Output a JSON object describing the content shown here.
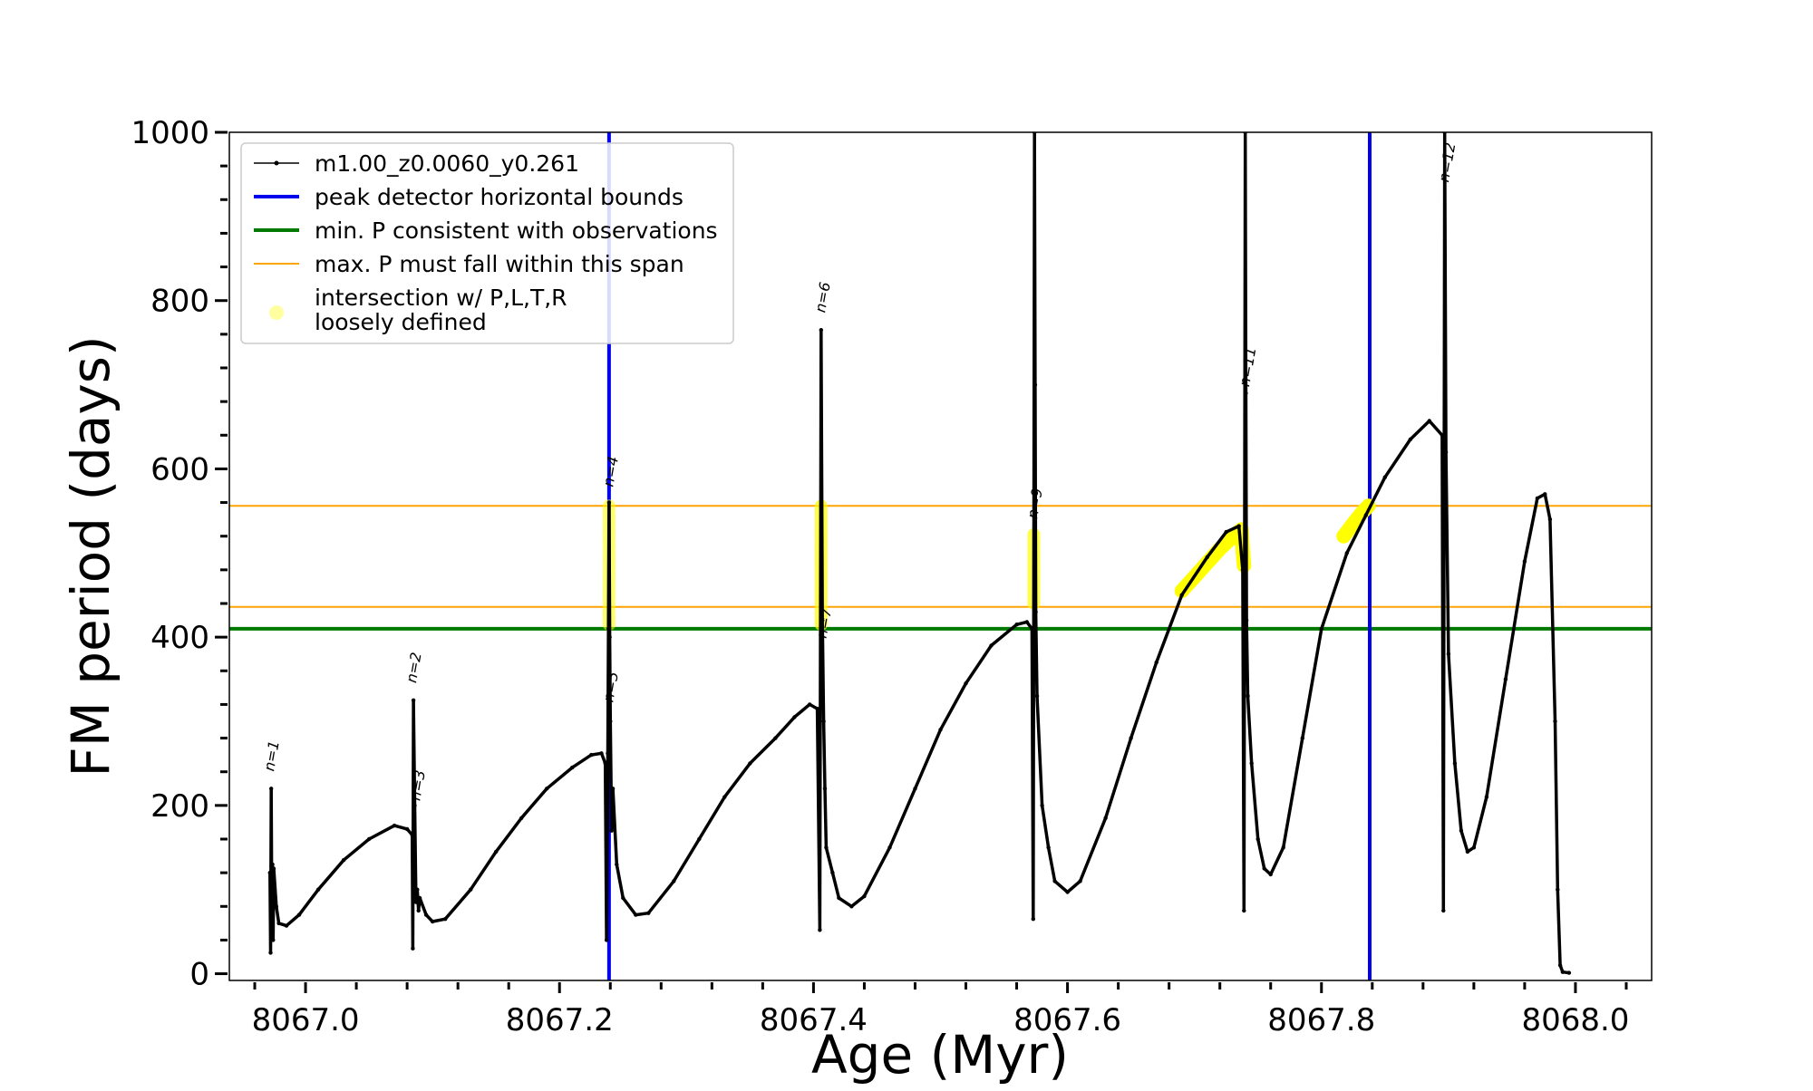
{
  "chart_data": {
    "type": "line",
    "title": "",
    "xlabel": "Age (Myr)",
    "ylabel": "FM period (days)",
    "xlim": [
      8066.94,
      8068.06
    ],
    "ylim": [
      -8,
      1000
    ],
    "x_ticks": [
      8067.0,
      8067.2,
      8067.4,
      8067.6,
      8067.8,
      8068.0
    ],
    "x_tick_labels": [
      "8067.0",
      "8067.2",
      "8067.4",
      "8067.6",
      "8067.8",
      "8068.0"
    ],
    "y_ticks": [
      0,
      200,
      400,
      600,
      800,
      1000
    ],
    "y_tick_labels": [
      "0",
      "200",
      "400",
      "600",
      "800",
      "1000"
    ],
    "x_minor_step": 0.04,
    "y_minor_step": 40,
    "legend": {
      "position": "top-left",
      "entries": [
        {
          "label": "m1.00_z0.0060_y0.261",
          "style": "line-marker",
          "color": "#000000"
        },
        {
          "label": "peak detector horizontal bounds",
          "style": "line",
          "color": "#0000ee"
        },
        {
          "label": "min. P consistent with observations",
          "style": "line",
          "color": "#007a00"
        },
        {
          "label": "max. P must fall within this span",
          "style": "line",
          "color": "#ffa500"
        },
        {
          "label": "intersection w/ P,L,T,R",
          "label2": "loosely defined",
          "style": "marker",
          "color": "#ffff88"
        }
      ]
    },
    "series": [
      {
        "name": "m1.00_z0.0060_y0.261",
        "color": "#000000",
        "points": [
          [
            8066.972,
            120
          ],
          [
            8066.9725,
            25
          ],
          [
            8066.973,
            220
          ],
          [
            8066.9735,
            60
          ],
          [
            8066.974,
            130
          ],
          [
            8066.9745,
            40
          ],
          [
            8066.975,
            125
          ],
          [
            8066.977,
            80
          ],
          [
            8066.979,
            60
          ],
          [
            8066.985,
            57
          ],
          [
            8066.995,
            70
          ],
          [
            8067.01,
            100
          ],
          [
            8067.03,
            135
          ],
          [
            8067.05,
            160
          ],
          [
            8067.07,
            176
          ],
          [
            8067.08,
            172
          ],
          [
            8067.084,
            165
          ],
          [
            8067.0845,
            30
          ],
          [
            8067.085,
            325
          ],
          [
            8067.086,
            200
          ],
          [
            8067.087,
            85
          ],
          [
            8067.088,
            100
          ],
          [
            8067.089,
            75
          ],
          [
            8067.09,
            90
          ],
          [
            8067.095,
            70
          ],
          [
            8067.1,
            62
          ],
          [
            8067.11,
            65
          ],
          [
            8067.13,
            100
          ],
          [
            8067.15,
            145
          ],
          [
            8067.17,
            185
          ],
          [
            8067.19,
            220
          ],
          [
            8067.21,
            245
          ],
          [
            8067.225,
            260
          ],
          [
            8067.233,
            262
          ],
          [
            8067.236,
            250
          ],
          [
            8067.237,
            40
          ],
          [
            8067.238,
            262
          ],
          [
            8067.2385,
            410
          ],
          [
            8067.239,
            560
          ],
          [
            8067.2395,
            400
          ],
          [
            8067.24,
            300
          ],
          [
            8067.241,
            170
          ],
          [
            8067.242,
            220
          ],
          [
            8067.245,
            130
          ],
          [
            8067.25,
            90
          ],
          [
            8067.26,
            70
          ],
          [
            8067.27,
            72
          ],
          [
            8067.29,
            110
          ],
          [
            8067.31,
            160
          ],
          [
            8067.33,
            210
          ],
          [
            8067.35,
            250
          ],
          [
            8067.37,
            280
          ],
          [
            8067.385,
            305
          ],
          [
            8067.397,
            320
          ],
          [
            8067.403,
            315
          ],
          [
            8067.405,
            52
          ],
          [
            8067.406,
            765
          ],
          [
            8067.407,
            420
          ],
          [
            8067.408,
            300
          ],
          [
            8067.409,
            220
          ],
          [
            8067.41,
            150
          ],
          [
            8067.415,
            120
          ],
          [
            8067.42,
            90
          ],
          [
            8067.43,
            80
          ],
          [
            8067.44,
            92
          ],
          [
            8067.46,
            150
          ],
          [
            8067.48,
            220
          ],
          [
            8067.5,
            290
          ],
          [
            8067.52,
            345
          ],
          [
            8067.54,
            390
          ],
          [
            8067.56,
            415
          ],
          [
            8067.568,
            418
          ],
          [
            8067.572,
            410
          ],
          [
            8067.573,
            65
          ],
          [
            8067.574,
            1000
          ],
          [
            8067.5745,
            700
          ],
          [
            8067.575,
            430
          ],
          [
            8067.576,
            330
          ],
          [
            8067.58,
            200
          ],
          [
            8067.585,
            150
          ],
          [
            8067.59,
            110
          ],
          [
            8067.6,
            97
          ],
          [
            8067.61,
            110
          ],
          [
            8067.63,
            185
          ],
          [
            8067.65,
            280
          ],
          [
            8067.67,
            370
          ],
          [
            8067.69,
            450
          ],
          [
            8067.71,
            495
          ],
          [
            8067.725,
            525
          ],
          [
            8067.735,
            532
          ],
          [
            8067.738,
            480
          ],
          [
            8067.739,
            75
          ],
          [
            8067.74,
            1000
          ],
          [
            8067.7405,
            690
          ],
          [
            8067.741,
            420
          ],
          [
            8067.742,
            330
          ],
          [
            8067.745,
            250
          ],
          [
            8067.75,
            160
          ],
          [
            8067.755,
            125
          ],
          [
            8067.76,
            118
          ],
          [
            8067.77,
            150
          ],
          [
            8067.785,
            280
          ],
          [
            8067.8,
            410
          ],
          [
            8067.82,
            500
          ],
          [
            8067.835,
            545
          ],
          [
            8067.85,
            590
          ],
          [
            8067.87,
            635
          ],
          [
            8067.885,
            657
          ],
          [
            8067.895,
            640
          ],
          [
            8067.896,
            75
          ],
          [
            8067.897,
            1000
          ],
          [
            8067.898,
            620
          ],
          [
            8067.9,
            380
          ],
          [
            8067.905,
            250
          ],
          [
            8067.91,
            170
          ],
          [
            8067.915,
            145
          ],
          [
            8067.92,
            150
          ],
          [
            8067.93,
            210
          ],
          [
            8067.945,
            350
          ],
          [
            8067.96,
            490
          ],
          [
            8067.97,
            565
          ],
          [
            8067.976,
            570
          ],
          [
            8067.98,
            540
          ],
          [
            8067.984,
            300
          ],
          [
            8067.986,
            100
          ],
          [
            8067.988,
            10
          ],
          [
            8067.99,
            2
          ],
          [
            8067.995,
            1
          ]
        ]
      }
    ],
    "hlines": [
      {
        "name": "min-P-line",
        "y": 410,
        "color": "#007a00",
        "width": 4
      },
      {
        "name": "max-P-upper-line",
        "y": 556,
        "color": "#ffa500",
        "width": 2
      },
      {
        "name": "max-P-lower-line",
        "y": 436,
        "color": "#ffa500",
        "width": 2
      }
    ],
    "vlines": [
      {
        "name": "peak-bound-left-line",
        "x": 8067.239,
        "color": "#0000ee",
        "width": 4
      },
      {
        "name": "peak-bound-right-line",
        "x": 8067.838,
        "color": "#0000ee",
        "width": 4
      }
    ],
    "intersections": [
      {
        "type": "band",
        "x": 8067.239,
        "y_range": [
          415,
          556
        ],
        "opacity": 0.55
      },
      {
        "type": "band",
        "x": 8067.406,
        "y_range": [
          415,
          556
        ],
        "opacity": 0.7
      },
      {
        "type": "band",
        "x": 8067.5735,
        "y_range": [
          440,
          522
        ],
        "opacity": 0.7
      },
      {
        "type": "curve",
        "points": [
          [
            8067.69,
            455
          ],
          [
            8067.705,
            480
          ],
          [
            8067.72,
            505
          ],
          [
            8067.732,
            522
          ],
          [
            8067.737,
            528
          ],
          [
            8067.738,
            505
          ],
          [
            8067.739,
            485
          ]
        ],
        "opacity": 1
      },
      {
        "type": "curve",
        "points": [
          [
            8067.8175,
            520
          ],
          [
            8067.825,
            535
          ],
          [
            8067.832,
            548
          ],
          [
            8067.837,
            556
          ]
        ],
        "opacity": 1
      }
    ],
    "annotations": [
      {
        "text": "n=1",
        "x": 8066.975,
        "y": 240
      },
      {
        "text": "n=2",
        "x": 8067.087,
        "y": 345
      },
      {
        "text": "n=3",
        "x": 8067.09,
        "y": 205
      },
      {
        "text": "n=4",
        "x": 8067.242,
        "y": 578
      },
      {
        "text": "n=5",
        "x": 8067.242,
        "y": 322
      },
      {
        "text": "n=6",
        "x": 8067.409,
        "y": 785
      },
      {
        "text": "n=7",
        "x": 8067.41,
        "y": 398
      },
      {
        "text": "n=9",
        "x": 8067.576,
        "y": 540
      },
      {
        "text": "n=11",
        "x": 8067.743,
        "y": 697
      },
      {
        "text": "n=12",
        "x": 8067.9,
        "y": 940
      }
    ]
  }
}
